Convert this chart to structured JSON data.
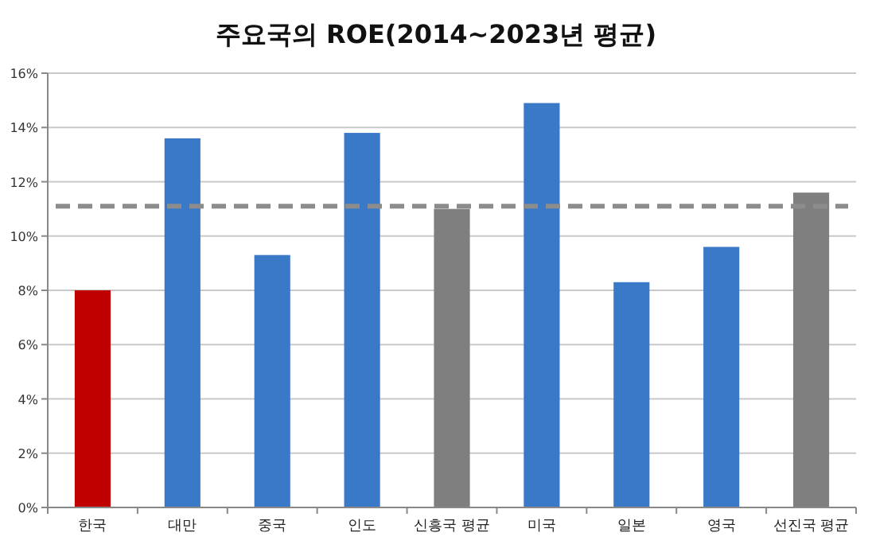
{
  "chart_data": {
    "type": "bar",
    "title": "주요국의 ROE(2014~2023년 평균)",
    "categories": [
      "한국",
      "대만",
      "중국",
      "인도",
      "신흥국 평균",
      "미국",
      "일본",
      "영국",
      "선진국 평균"
    ],
    "values": [
      8.0,
      13.6,
      9.3,
      13.8,
      11.0,
      14.9,
      8.3,
      9.6,
      11.6
    ],
    "colors": [
      "#c00000",
      "#3a78c8",
      "#3a78c8",
      "#3a78c8",
      "#7f7f7f",
      "#3a78c8",
      "#3a78c8",
      "#3a78c8",
      "#7f7f7f"
    ],
    "ylim": [
      0,
      16
    ],
    "yticks": [
      {
        "value": 0,
        "label": "0%"
      },
      {
        "value": 2,
        "label": "2%"
      },
      {
        "value": 4,
        "label": "4%"
      },
      {
        "value": 6,
        "label": "6%"
      },
      {
        "value": 8,
        "label": "8%"
      },
      {
        "value": 10,
        "label": "10%"
      },
      {
        "value": 12,
        "label": "12%"
      },
      {
        "value": 14,
        "label": "14%"
      },
      {
        "value": 16,
        "label": "16%"
      }
    ],
    "grid": "y",
    "ref_lines": [
      {
        "axis": "y",
        "value": 11.1,
        "color": "#8c8c8c",
        "line_style": "dashed"
      }
    ]
  }
}
